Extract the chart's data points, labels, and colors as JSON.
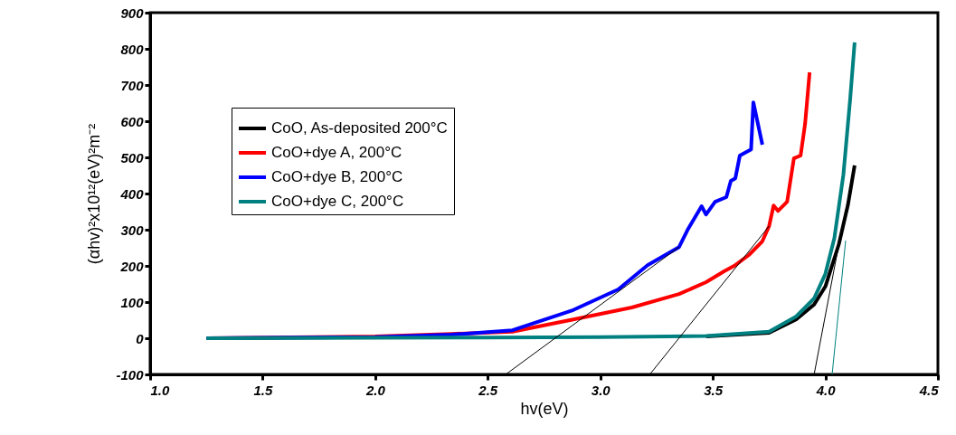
{
  "chart_data": {
    "type": "line",
    "xlabel": "hv(eV)",
    "ylabel": "(αhv)²x10¹²(eV)²m⁻²",
    "xlim": [
      1.0,
      4.5
    ],
    "xticks": [
      {
        "value": 1.0,
        "label": "1.0"
      },
      {
        "value": 1.5,
        "label": "1.5"
      },
      {
        "value": 2.0,
        "label": "2.0"
      },
      {
        "value": 2.5,
        "label": "2.5"
      },
      {
        "value": 3.0,
        "label": "3.0"
      },
      {
        "value": 3.5,
        "label": "3.5"
      },
      {
        "value": 4.0,
        "label": "4.0"
      },
      {
        "value": 4.5,
        "label": "4.5"
      }
    ],
    "ylim": [
      -100,
      900
    ],
    "yticks": [
      -100,
      0,
      100,
      200,
      300,
      400,
      500,
      600,
      700,
      800,
      900
    ],
    "grid": false,
    "legend": "top left",
    "line_style": "solid",
    "marker": "none",
    "series": [
      {
        "name": "CoO, As-deposited 200°C",
        "color": "#000000",
        "x": [
          3.47,
          3.75,
          3.87,
          3.95,
          4.0,
          4.06,
          4.1,
          4.13
        ],
        "values": [
          5,
          15,
          52,
          93,
          143,
          260,
          368,
          478
        ]
      },
      {
        "name": "CoO+dye A, 200°C",
        "color": "#ff0000",
        "x": [
          1.25,
          2.0,
          2.34,
          2.61,
          2.88,
          3.14,
          3.35,
          3.47,
          3.55,
          3.6,
          3.66,
          3.72,
          3.75,
          3.77,
          3.79,
          3.83,
          3.86,
          3.89,
          3.91,
          3.93
        ],
        "values": [
          0,
          5,
          12,
          18,
          52,
          85,
          122,
          155,
          185,
          202,
          230,
          268,
          310,
          367,
          352,
          377,
          497,
          505,
          593,
          735
        ]
      },
      {
        "name": "CoO+dye B, 200°C",
        "color": "#0000ff",
        "x": [
          1.25,
          2.0,
          2.34,
          2.61,
          2.88,
          3.08,
          3.21,
          3.35,
          3.39,
          3.45,
          3.47,
          3.51,
          3.56,
          3.58,
          3.6,
          3.62,
          3.67,
          3.68,
          3.72
        ],
        "values": [
          0,
          3,
          10,
          22,
          78,
          135,
          202,
          252,
          302,
          365,
          342,
          377,
          390,
          435,
          442,
          505,
          522,
          652,
          535
        ]
      },
      {
        "name": "CoO+dye C, 200°C",
        "color": "#008080",
        "x": [
          1.25,
          2.0,
          2.5,
          3.0,
          3.47,
          3.75,
          3.87,
          3.95,
          4.0,
          4.04,
          4.08,
          4.11,
          4.13
        ],
        "values": [
          0,
          1,
          2,
          3,
          6,
          18,
          60,
          110,
          178,
          277,
          452,
          660,
          818
        ]
      },
      {
        "color": "#000000",
        "x": [
          3.35,
          2.58
        ],
        "values": [
          252,
          -100
        ]
      },
      {
        "color": "#000000",
        "x": [
          3.75,
          3.22
        ],
        "values": [
          310,
          -100
        ]
      },
      {
        "color": "#000000",
        "x": [
          4.06,
          3.95
        ],
        "values": [
          260,
          -100
        ]
      },
      {
        "color": "#008080",
        "x": [
          4.09,
          4.03
        ],
        "values": [
          270,
          -100
        ]
      }
    ]
  }
}
